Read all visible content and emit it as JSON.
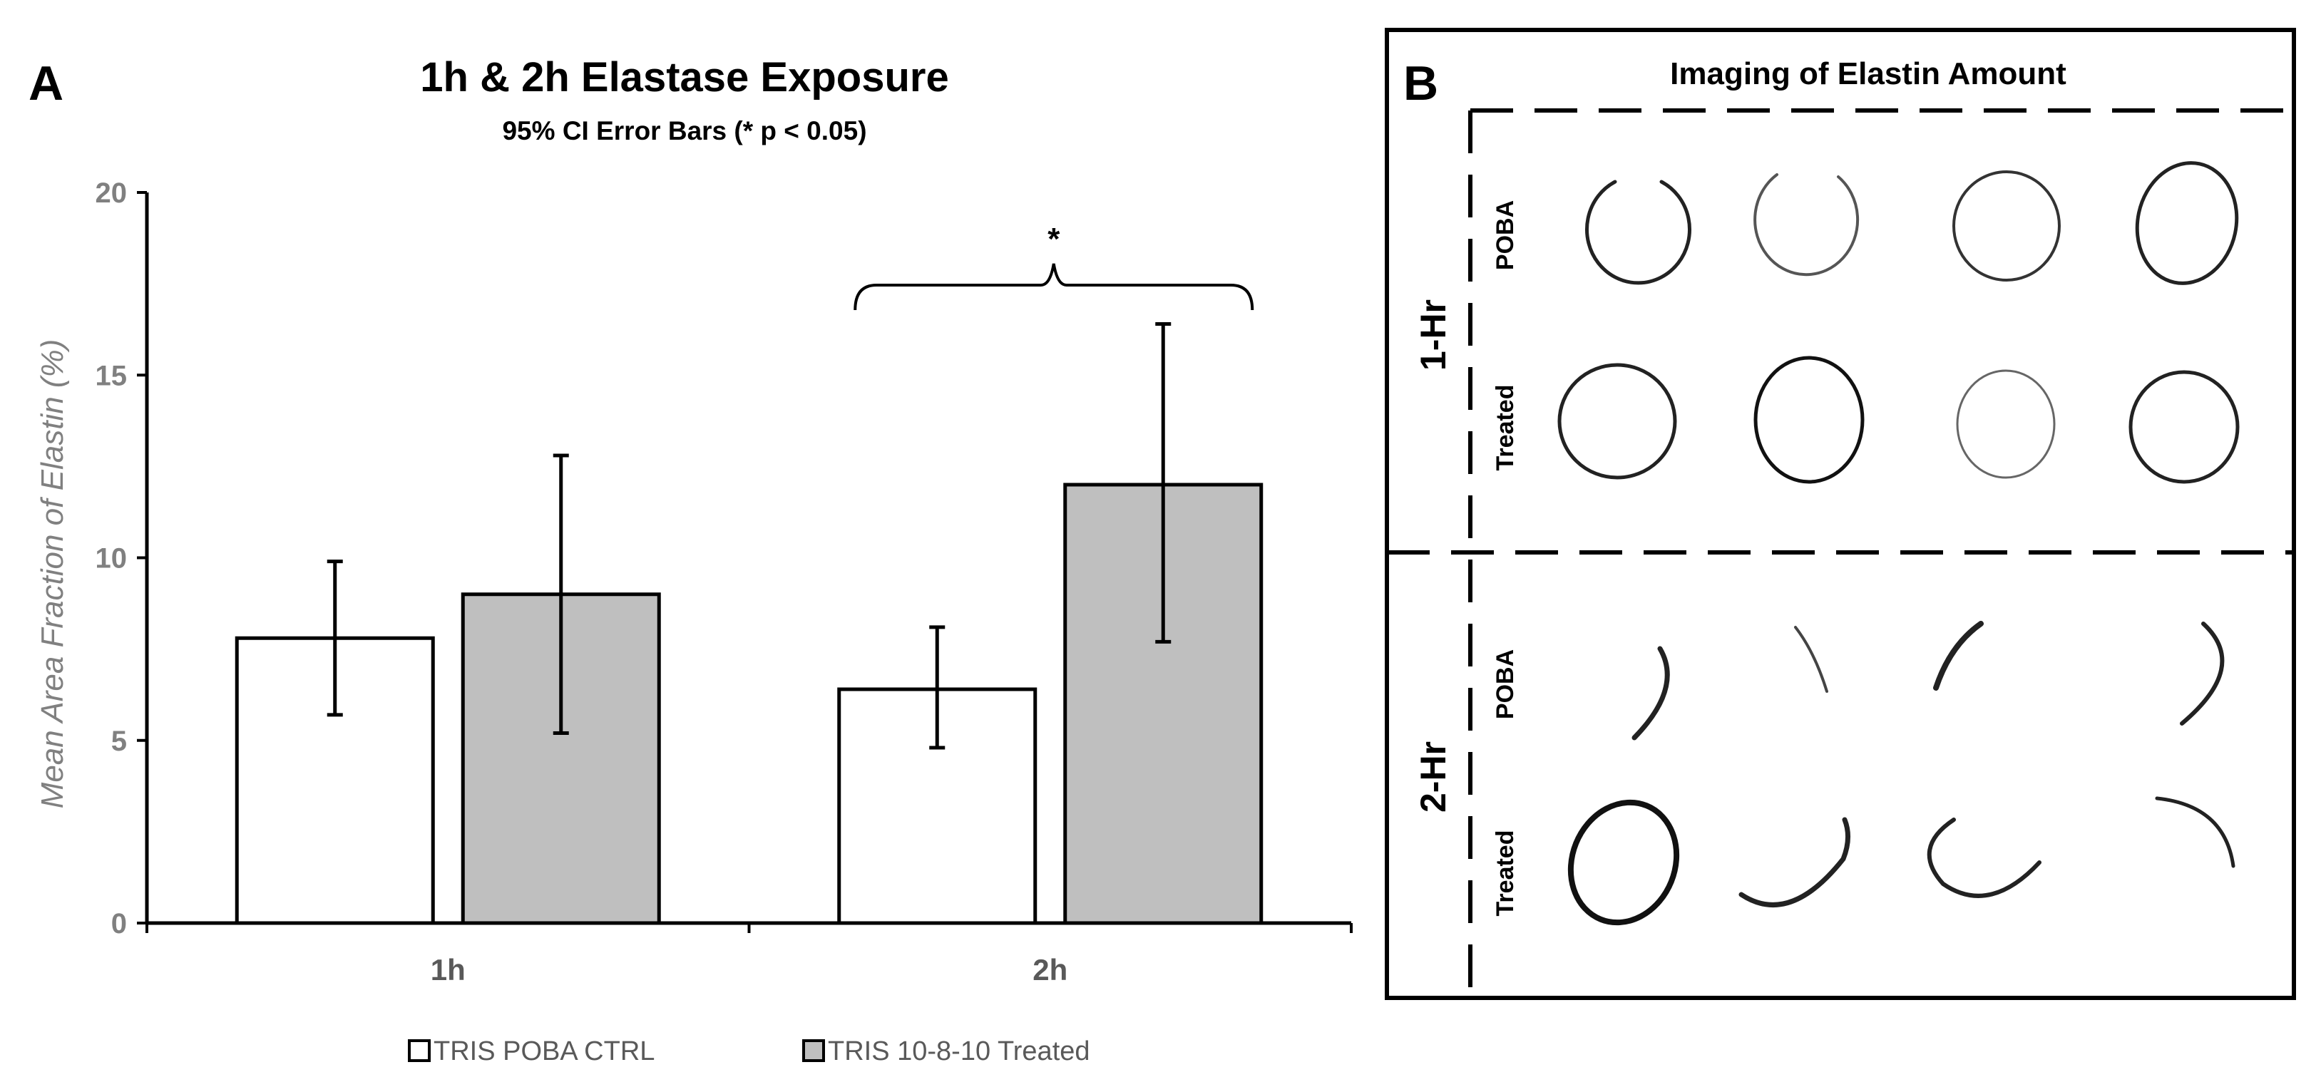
{
  "panel_a": {
    "label": "A",
    "title": "1h & 2h Elastase Exposure",
    "subtitle": "95% CI Error Bars (*  p < 0.05)",
    "significance_marker": "*"
  },
  "chart_data": {
    "type": "bar",
    "title": "1h & 2h Elastase Exposure",
    "subtitle": "95% CI Error Bars (*  p < 0.05)",
    "xlabel": "",
    "ylabel": "Mean Area Fraction of Elastin (%)",
    "ylim": [
      0,
      20
    ],
    "yticks": [
      0,
      5,
      10,
      15,
      20
    ],
    "categories": [
      "1h",
      "2h"
    ],
    "series": [
      {
        "name": "TRIS POBA CTRL",
        "color": "#ffffff",
        "values": [
          7.8,
          6.4
        ],
        "ci_low": [
          5.7,
          4.8
        ],
        "ci_high": [
          9.9,
          8.1
        ]
      },
      {
        "name": "TRIS 10-8-10 Treated",
        "color": "#bfbfbf",
        "values": [
          9.0,
          12.0
        ],
        "ci_low": [
          5.2,
          7.7
        ],
        "ci_high": [
          12.8,
          16.4
        ]
      }
    ],
    "annotations": [
      {
        "text": "*",
        "between": "2h TRIS POBA CTRL vs 2h TRIS 10-8-10 Treated"
      }
    ],
    "legend_position": "bottom"
  },
  "panel_b": {
    "label": "B",
    "title": "Imaging of Elastin Amount",
    "group_labels": [
      "1-Hr",
      "2-Hr"
    ],
    "row_labels": [
      "POBA",
      "Treated",
      "POBA",
      "Treated"
    ]
  }
}
